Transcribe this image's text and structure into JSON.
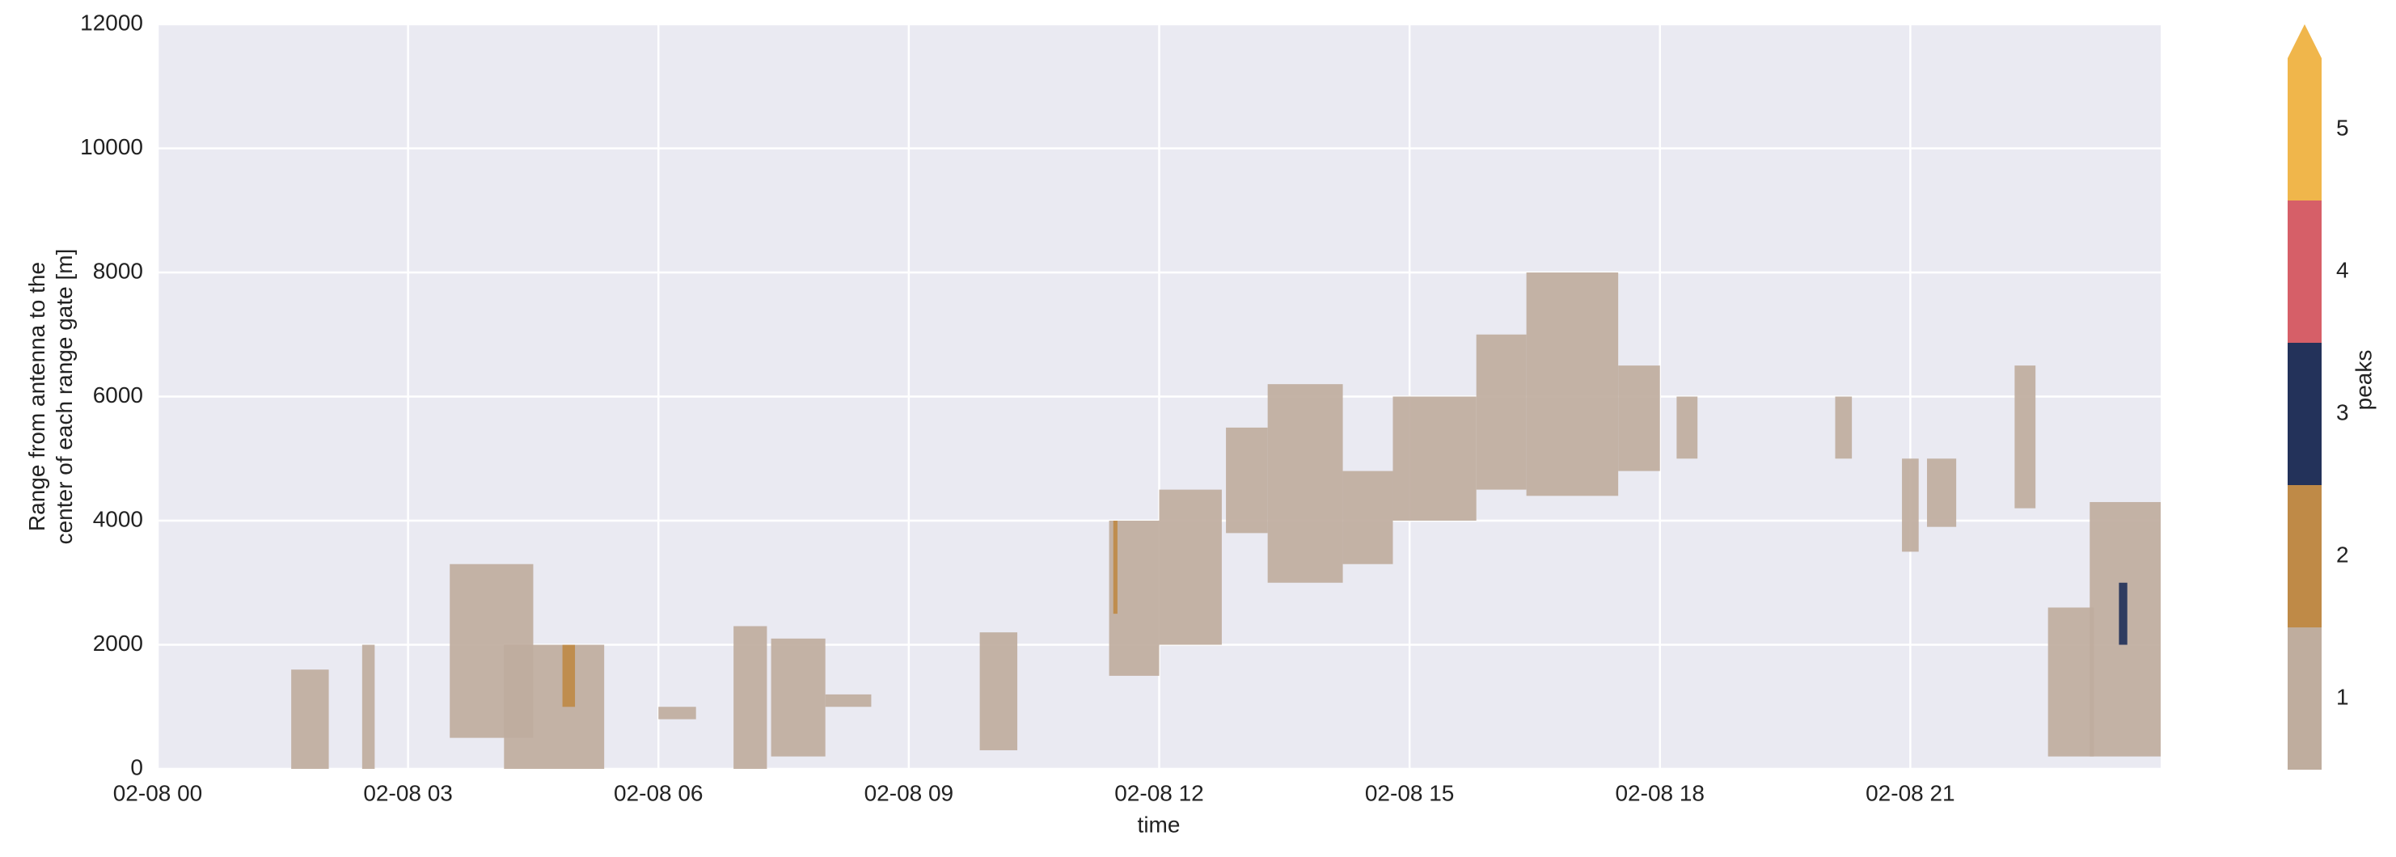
{
  "chart_data": {
    "type": "mesh",
    "xlabel": "time",
    "ylabel": [
      "Range from antenna to the",
      "center of each range gate [m]"
    ],
    "xlim": [
      0,
      24
    ],
    "xticks": [
      {
        "value": 0,
        "label": "02-08 00"
      },
      {
        "value": 3,
        "label": "02-08 03"
      },
      {
        "value": 6,
        "label": "02-08 06"
      },
      {
        "value": 9,
        "label": "02-08 09"
      },
      {
        "value": 12,
        "label": "02-08 12"
      },
      {
        "value": 15,
        "label": "02-08 15"
      },
      {
        "value": 18,
        "label": "02-08 18"
      },
      {
        "value": 21,
        "label": "02-08 21"
      }
    ],
    "ylim": [
      0,
      12000
    ],
    "yticks": [
      0,
      2000,
      4000,
      6000,
      8000,
      10000,
      12000
    ],
    "grid": true,
    "background": "#eaeaf2",
    "x": [
      1.6,
      2.45,
      3.5,
      4.15,
      6.0,
      6.9,
      7.35,
      8.0,
      9.85,
      11.4,
      12.0,
      12.8,
      13.3,
      14.2,
      14.8,
      15.8,
      16.4,
      17.5,
      18.2,
      20.1,
      20.9,
      21.2,
      22.25,
      22.65,
      23.15,
      4.85,
      11.45,
      23.5
    ],
    "x_end": [
      2.05,
      2.6,
      4.5,
      5.35,
      6.45,
      7.3,
      8.0,
      8.55,
      10.3,
      12.0,
      12.75,
      13.3,
      14.2,
      14.8,
      15.8,
      16.4,
      17.5,
      18.0,
      18.45,
      20.3,
      21.1,
      21.55,
      22.5,
      23.2,
      24.0,
      5.0,
      11.5,
      23.6
    ],
    "y_bottom": [
      0,
      0,
      500,
      0,
      800,
      0,
      200,
      1000,
      300,
      1500,
      2000,
      3800,
      3000,
      3300,
      4000,
      4500,
      4400,
      4800,
      5000,
      5000,
      3500,
      3900,
      4200,
      200,
      200,
      1000,
      2500,
      2000
    ],
    "y_top": [
      1600,
      2000,
      3300,
      2000,
      1000,
      2300,
      2100,
      1200,
      2200,
      4000,
      4500,
      5500,
      6200,
      4800,
      6000,
      7000,
      8000,
      6500,
      6000,
      6000,
      5000,
      5000,
      6500,
      2600,
      4300,
      2000,
      4000,
      3000
    ],
    "values": [
      1,
      1,
      1,
      1,
      1,
      1,
      1,
      1,
      1,
      1,
      1,
      1,
      1,
      1,
      1,
      1,
      1,
      1,
      1,
      1,
      1,
      1,
      1,
      1,
      1,
      2,
      2,
      3
    ],
    "colorbar": {
      "label": "peaks",
      "ticks": [
        1,
        2,
        3,
        4,
        5
      ],
      "colors": [
        "#bfad9e",
        "#bf8a47",
        "#23325a",
        "#d65f68",
        "#f0b64b"
      ],
      "extend": "max"
    }
  }
}
